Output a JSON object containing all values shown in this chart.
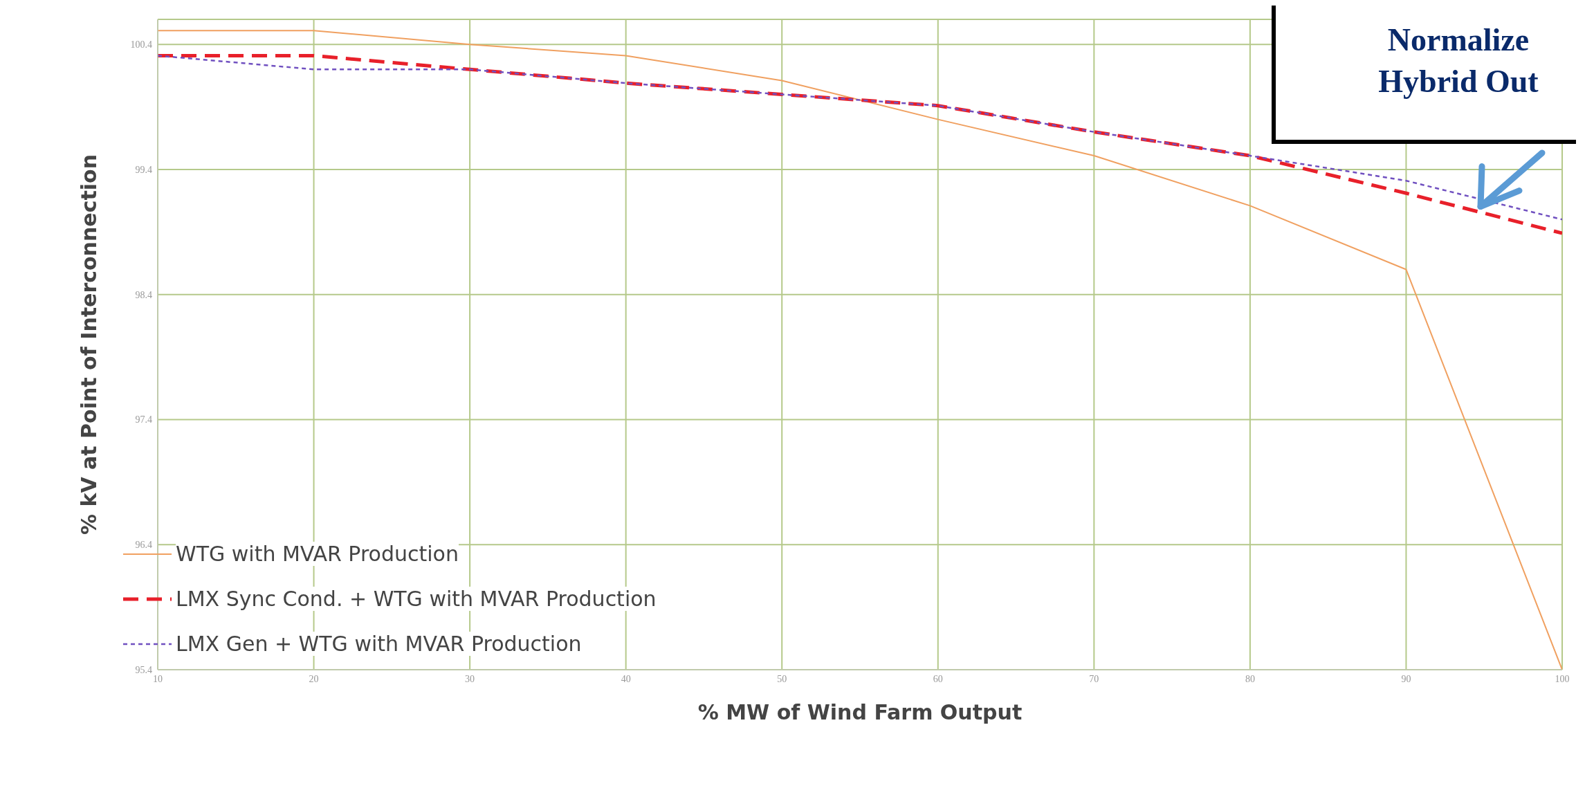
{
  "chart_data": {
    "type": "line",
    "xlabel": "% MW of Wind Farm Output",
    "ylabel": "% kV at Point of Interconnection",
    "x": [
      10,
      20,
      30,
      40,
      50,
      60,
      70,
      80,
      90,
      100
    ],
    "series": [
      {
        "name": "WTG with MVAR Production",
        "color": "#f0a060",
        "line_style": "solid",
        "values": [
          100.51,
          100.51,
          100.4,
          100.31,
          100.11,
          99.8,
          99.51,
          99.11,
          98.6,
          95.4
        ]
      },
      {
        "name": "LMX Sync Cond. + WTG with MVAR Production",
        "color": "#e8202a",
        "line_style": "dashed",
        "values": [
          100.31,
          100.31,
          100.2,
          100.09,
          100.0,
          99.91,
          99.7,
          99.51,
          99.21,
          98.89
        ]
      },
      {
        "name": "LMX Gen + WTG with MVAR Production",
        "color": "#7050c0",
        "line_style": "dotted",
        "values": [
          100.31,
          100.2,
          100.2,
          100.09,
          100.0,
          99.91,
          99.7,
          99.51,
          99.31,
          99.0
        ]
      }
    ],
    "xlim": [
      10,
      100
    ],
    "xticks": [
      10,
      20,
      30,
      40,
      50,
      60,
      70,
      80,
      90,
      100
    ],
    "ylim": [
      95.4,
      100.6
    ],
    "yticks": [
      95.4,
      96.4,
      97.4,
      98.4,
      99.4,
      100.4
    ],
    "grid": true,
    "legend": "bottom left",
    "marker": "none",
    "annotations": [
      "Normalize Hybrid Out"
    ]
  }
}
